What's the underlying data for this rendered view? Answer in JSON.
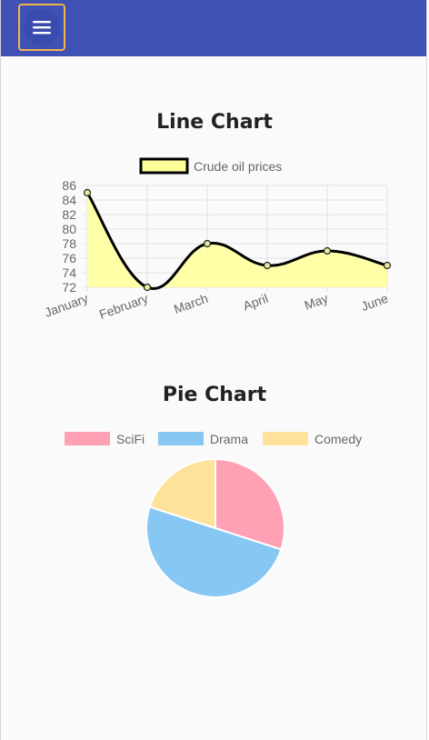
{
  "toolbar": {
    "menu_icon": "menu-icon",
    "background": "#3f51b5",
    "focus_outline": "#f0b34c"
  },
  "line_section": {
    "title": "Line Chart"
  },
  "pie_section": {
    "title": "Pie Chart"
  },
  "chart_data": [
    {
      "type": "line",
      "title": "",
      "categories": [
        "January",
        "February",
        "March",
        "April",
        "May",
        "June"
      ],
      "series": [
        {
          "name": "Crude oil prices",
          "values": [
            85,
            72,
            78,
            75,
            77,
            75
          ],
          "fill": "#ffff99",
          "border": "#000000"
        }
      ],
      "ylim": [
        72,
        86
      ],
      "yticks": [
        72,
        74,
        76,
        78,
        80,
        82,
        84,
        86
      ],
      "grid": true,
      "legend": "top",
      "smooth": true,
      "area": true
    },
    {
      "type": "pie",
      "title": "",
      "labels": [
        "SciFi",
        "Drama",
        "Comedy"
      ],
      "values": [
        30,
        50,
        20
      ],
      "colors": [
        "#ffa1b5",
        "#86c7f3",
        "#ffe29a"
      ],
      "legend": "top"
    }
  ]
}
